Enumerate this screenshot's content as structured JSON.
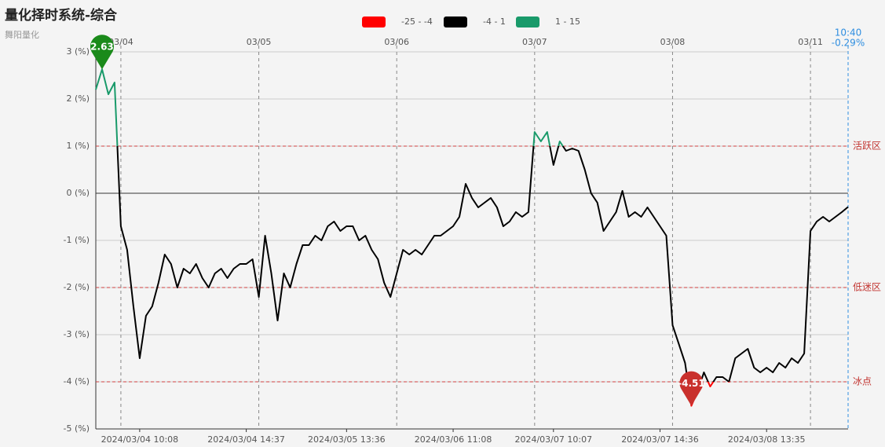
{
  "chart_data": {
    "type": "line",
    "title": "量化择时系统-综合",
    "subtitle": "舞阳量化",
    "categories": [
      null,
      null,
      null,
      null,
      null,
      null,
      null,
      "2024/03/04 10:08",
      null,
      null,
      null,
      null,
      null,
      null,
      null,
      null,
      null,
      null,
      null,
      null,
      null,
      null,
      null,
      null,
      "2024/03/04 14:37",
      null,
      null,
      null,
      null,
      null,
      null,
      null,
      null,
      null,
      null,
      null,
      null,
      null,
      null,
      null,
      "2024/03/05 13:36",
      null,
      null,
      null,
      null,
      null,
      null,
      null,
      null,
      null,
      null,
      null,
      null,
      null,
      null,
      null,
      null,
      "2024/03/06 11:08",
      null,
      null,
      null,
      null,
      null,
      null,
      null,
      null,
      null,
      null,
      null,
      null,
      null,
      null,
      null,
      "2024/03/07 10:07",
      null,
      null,
      null,
      null,
      null,
      null,
      null,
      null,
      null,
      null,
      null,
      null,
      null,
      null,
      null,
      null,
      "2024/03/07 14:36",
      null,
      null,
      null,
      null,
      null,
      null,
      null,
      null,
      null,
      null,
      null,
      null,
      null,
      null,
      null,
      null,
      "2024/03/08 13:35",
      null,
      null,
      null,
      null,
      null,
      null,
      null,
      null,
      null,
      null,
      null,
      null,
      null
    ],
    "top_categories": [
      null,
      null,
      null,
      null,
      "03/04",
      null,
      null,
      null,
      null,
      null,
      null,
      null,
      null,
      null,
      null,
      null,
      null,
      null,
      null,
      null,
      null,
      null,
      null,
      null,
      null,
      null,
      "03/05",
      null,
      null,
      null,
      null,
      null,
      null,
      null,
      null,
      null,
      null,
      null,
      null,
      null,
      null,
      null,
      null,
      null,
      null,
      null,
      null,
      null,
      "03/06",
      null,
      null,
      null,
      null,
      null,
      null,
      null,
      null,
      null,
      null,
      null,
      null,
      null,
      null,
      null,
      null,
      null,
      null,
      null,
      null,
      null,
      "03/07",
      null,
      null,
      null,
      null,
      null,
      null,
      null,
      null,
      null,
      null,
      null,
      null,
      null,
      null,
      null,
      null,
      null,
      null,
      null,
      null,
      null,
      "03/08",
      null,
      null,
      null,
      null,
      null,
      null,
      null,
      null,
      null,
      null,
      null,
      null,
      null,
      null,
      null,
      null,
      null,
      null,
      null,
      null,
      null,
      "03/11",
      null,
      null,
      null,
      null,
      null,
      null
    ],
    "series": [
      {
        "values": [
          2.2,
          2.63,
          2.1,
          2.35,
          -0.7,
          -1.2,
          -2.4,
          -3.5,
          -2.6,
          -2.4,
          -1.9,
          -1.3,
          -1.5,
          -2.0,
          -1.6,
          -1.7,
          -1.5,
          -1.8,
          -2.0,
          -1.7,
          -1.6,
          -1.8,
          -1.6,
          -1.5,
          -1.5,
          -1.4,
          -2.2,
          -0.9,
          -1.7,
          -2.7,
          -1.7,
          -2.0,
          -1.5,
          -1.1,
          -1.1,
          -0.9,
          -1.0,
          -0.7,
          -0.6,
          -0.8,
          -0.7,
          -0.7,
          -1.0,
          -0.9,
          -1.2,
          -1.4,
          -1.9,
          -2.2,
          -1.7,
          -1.2,
          -1.3,
          -1.2,
          -1.3,
          -1.1,
          -0.9,
          -0.9,
          -0.8,
          -0.7,
          -0.5,
          0.2,
          -0.1,
          -0.3,
          -0.2,
          -0.1,
          -0.3,
          -0.7,
          -0.6,
          -0.4,
          -0.5,
          -0.4,
          1.3,
          1.1,
          1.3,
          0.6,
          1.1,
          0.9,
          0.95,
          0.9,
          0.5,
          0,
          -0.2,
          -0.8,
          -0.6,
          -0.4,
          0.05,
          -0.5,
          -0.4,
          -0.5,
          -0.3,
          -0.5,
          -0.7,
          -0.9,
          -2.8,
          -3.2,
          -3.6,
          -4.51,
          -4.2,
          -3.8,
          -4.1,
          -3.9,
          -3.9,
          -4.0,
          -3.5,
          -3.4,
          -3.3,
          -3.7,
          -3.8,
          -3.7,
          -3.8,
          -3.6,
          -3.7,
          -3.5,
          -3.6,
          -3.4,
          -0.8,
          -0.6,
          -0.5,
          -0.6,
          -0.5,
          -0.4,
          -0.29
        ]
      }
    ],
    "visual_map": [
      {
        "label": "-25 - -4",
        "min": -25,
        "max": -4,
        "color": "#ff0000"
      },
      {
        "label": "-4 - 1",
        "min": -4,
        "max": 1,
        "color": "#000000"
      },
      {
        "label": "1 - 15",
        "min": 1,
        "max": 15,
        "color": "#199a6a"
      }
    ],
    "mark_lines": [
      {
        "value": 1,
        "label": "活跃区"
      },
      {
        "value": -2,
        "label": "低迷区"
      },
      {
        "value": -4,
        "label": "冰点"
      }
    ],
    "max_pin_color": "#1a8a1a",
    "min_pin_color": "#c9302c",
    "latest": {
      "time": "10:40",
      "value_label": "-0.29%"
    },
    "ylim": [
      -5,
      3
    ],
    "yticks": [
      {
        "value": 3,
        "label": "3 (%)"
      },
      {
        "value": 2,
        "label": "2 (%)"
      },
      {
        "value": 1,
        "label": "1 (%)"
      },
      {
        "value": 0,
        "label": "0 (%)"
      },
      {
        "value": -1,
        "label": "-1 (%)"
      },
      {
        "value": -2,
        "label": "-2 (%)"
      },
      {
        "value": -3,
        "label": "-3 (%)"
      },
      {
        "value": -4,
        "label": "-4 (%)"
      },
      {
        "value": -5,
        "label": "-5 (%)"
      }
    ],
    "grid": true
  }
}
